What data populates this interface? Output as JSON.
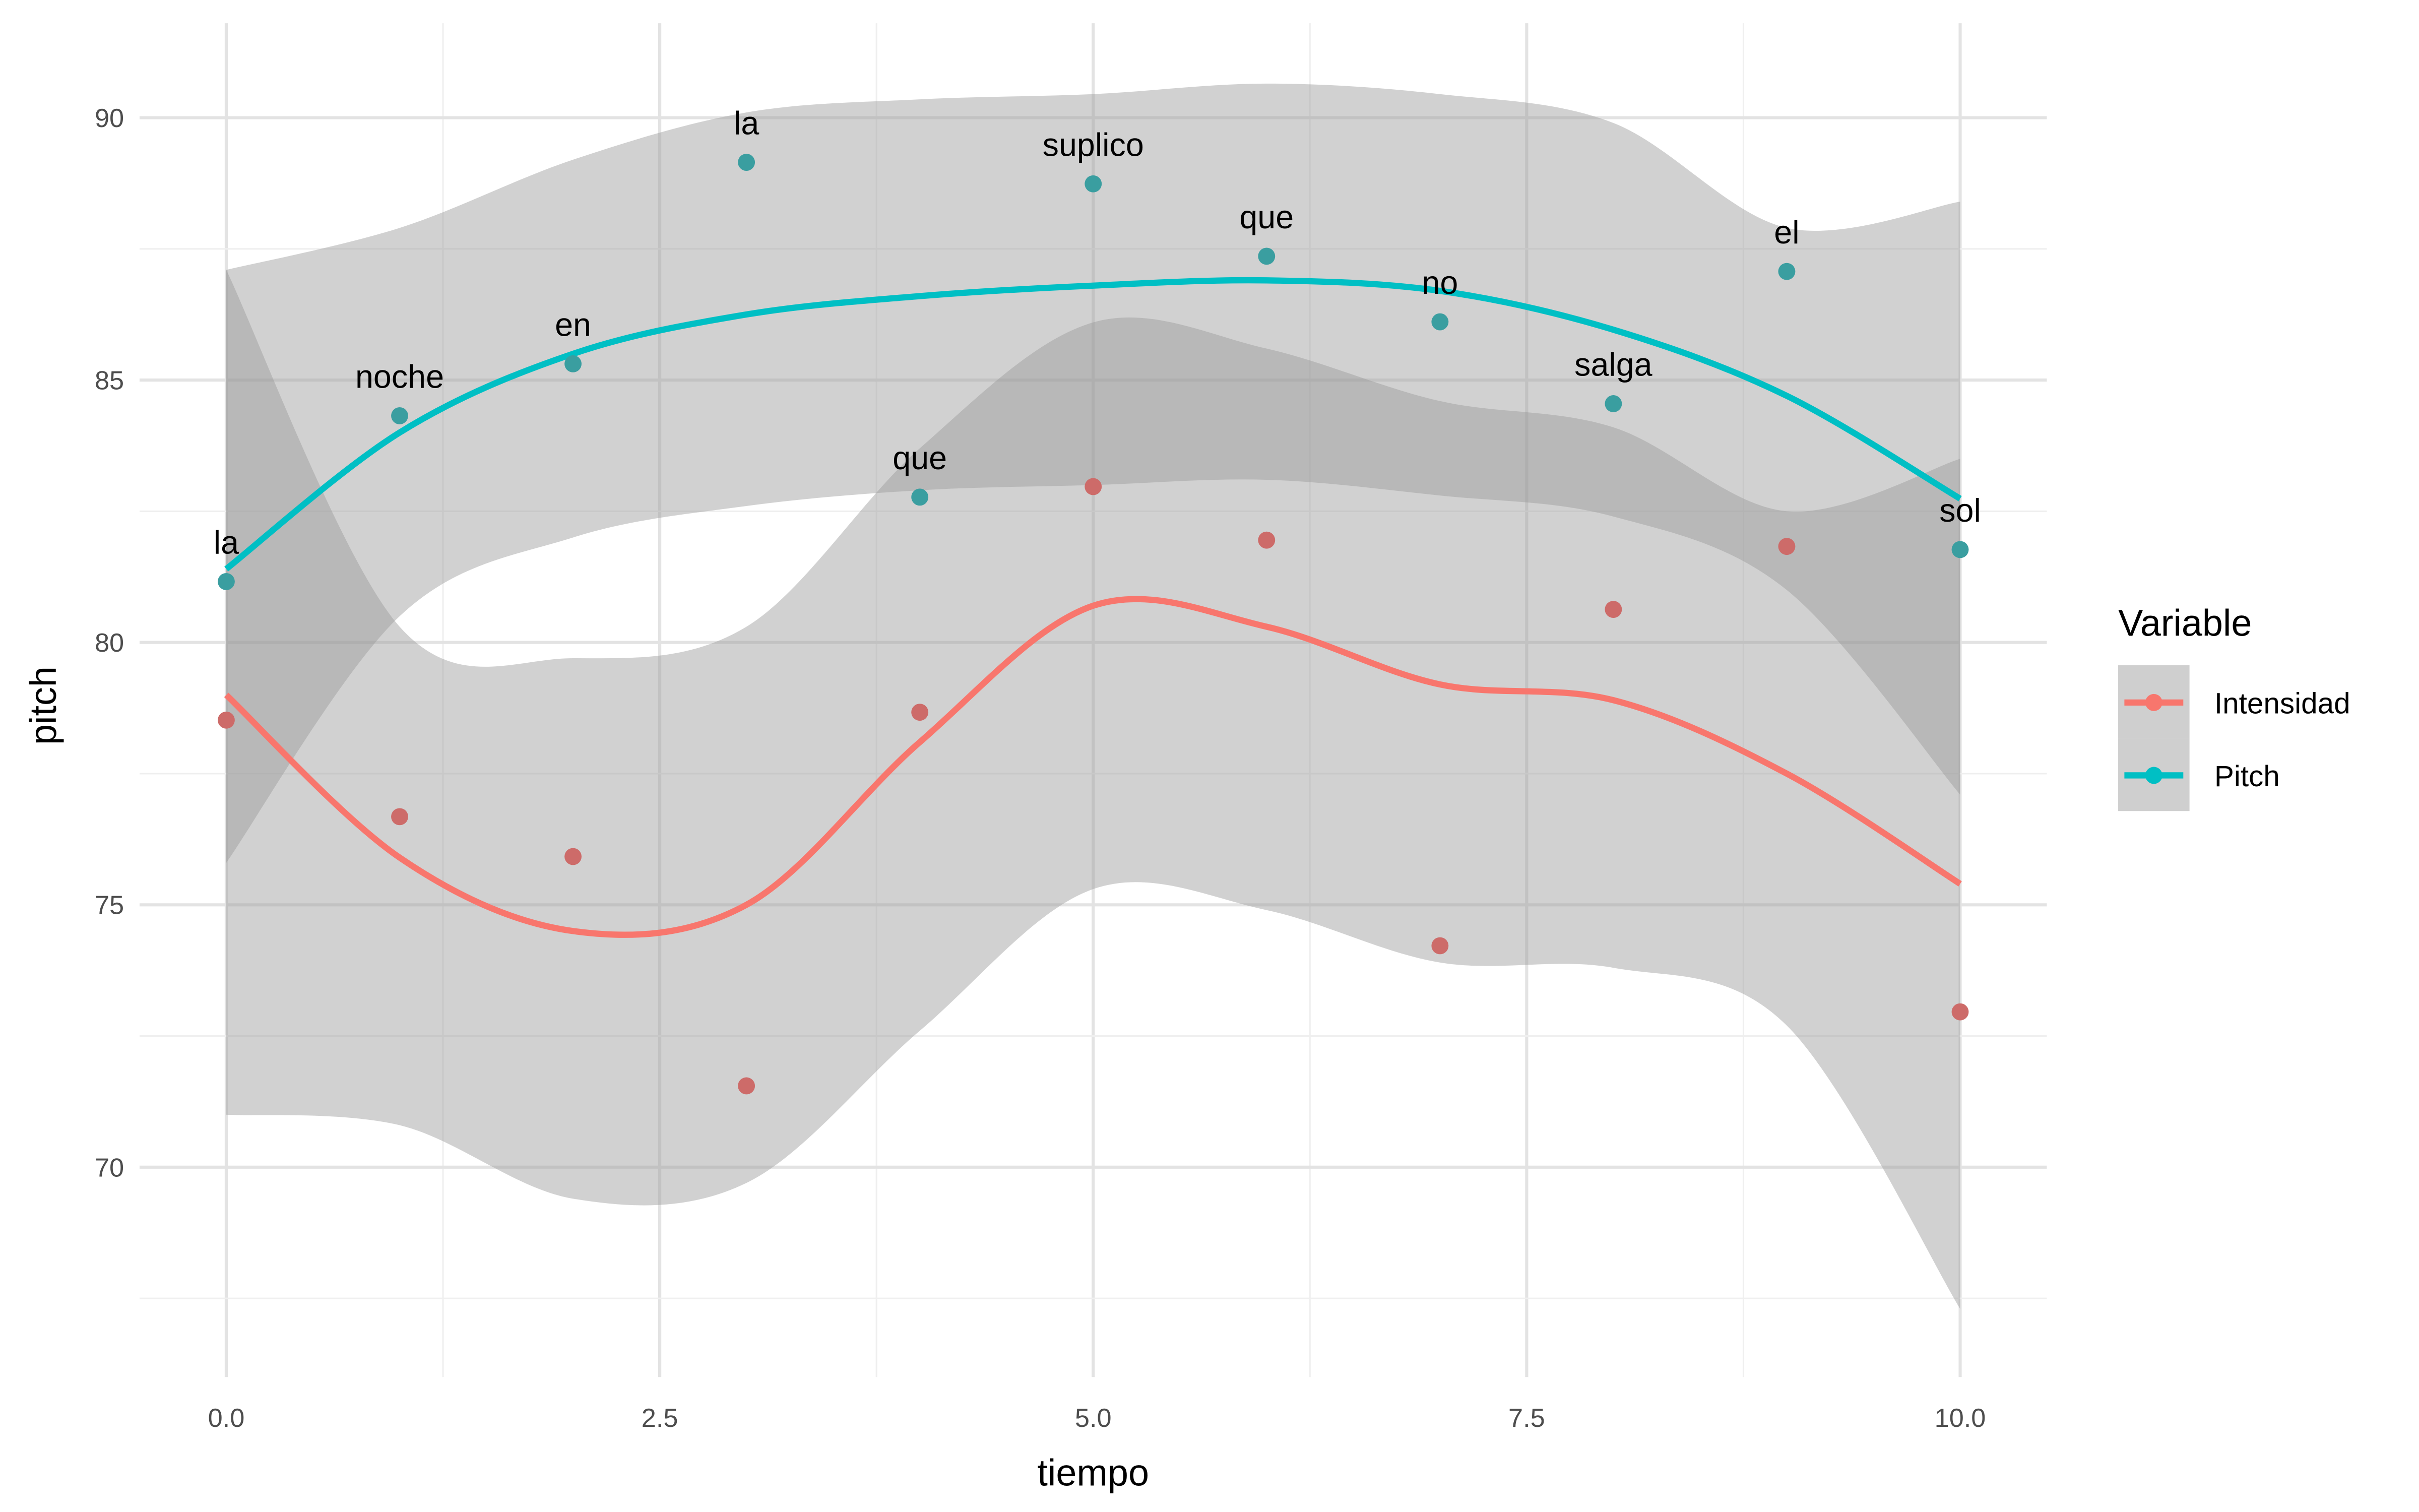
{
  "chart_data": {
    "type": "scatter",
    "xlabel": "tiempo",
    "ylabel": "pitch",
    "xlim": [
      -0.5,
      10.5
    ],
    "ylim": [
      66.0,
      91.8
    ],
    "grid": true,
    "x_ticks": [
      0.0,
      2.5,
      5.0,
      7.5,
      10.0
    ],
    "x_tick_labels": [
      "0.0",
      "2.5",
      "5.0",
      "7.5",
      "10.0"
    ],
    "y_ticks": [
      70,
      75,
      80,
      85,
      90
    ],
    "y_tick_labels": [
      "70",
      "75",
      "80",
      "85",
      "90"
    ],
    "legend": {
      "title": "Variable",
      "position": "right",
      "entries": [
        "Intensidad",
        "Pitch"
      ]
    },
    "x": [
      0,
      1,
      2,
      3,
      4,
      5,
      6,
      7,
      8,
      9,
      10
    ],
    "series": [
      {
        "name": "Intensidad",
        "color": "#F8766D",
        "point_color": "#CD6B69",
        "values": [
          78.52,
          76.68,
          75.92,
          71.55,
          78.67,
          82.97,
          81.95,
          74.22,
          80.63,
          81.83,
          72.96
        ],
        "smooth": [
          79.0,
          75.9,
          74.5,
          75.0,
          78.1,
          80.7,
          80.3,
          79.2,
          78.9,
          77.5,
          75.4
        ],
        "ribbon_upper": [
          87.1,
          80.3,
          79.7,
          80.3,
          83.7,
          86.1,
          85.6,
          84.6,
          84.1,
          82.5,
          83.5
        ],
        "ribbon_lower": [
          71.0,
          70.8,
          69.4,
          69.7,
          72.6,
          75.3,
          74.9,
          73.9,
          73.8,
          72.7,
          67.3
        ]
      },
      {
        "name": "Pitch",
        "color": "#00BFC4",
        "point_color": "#3A9EA0",
        "values": [
          81.16,
          84.32,
          85.31,
          89.15,
          82.77,
          88.74,
          87.36,
          86.11,
          84.55,
          87.07,
          81.77
        ],
        "labels": [
          "la",
          "noche",
          "en",
          "la",
          "que",
          "suplico",
          "que",
          "no",
          "salga",
          "el",
          "sol"
        ],
        "smooth": [
          81.4,
          84.0,
          85.5,
          86.25,
          86.6,
          86.8,
          86.9,
          86.7,
          85.96,
          84.7,
          82.74
        ],
        "ribbon_upper": [
          87.1,
          87.9,
          89.2,
          90.1,
          90.35,
          90.45,
          90.65,
          90.45,
          89.9,
          87.9,
          88.4
        ],
        "ribbon_lower": [
          75.8,
          80.5,
          82.0,
          82.6,
          82.9,
          83.0,
          83.1,
          82.8,
          82.4,
          81.0,
          77.1
        ]
      }
    ]
  }
}
